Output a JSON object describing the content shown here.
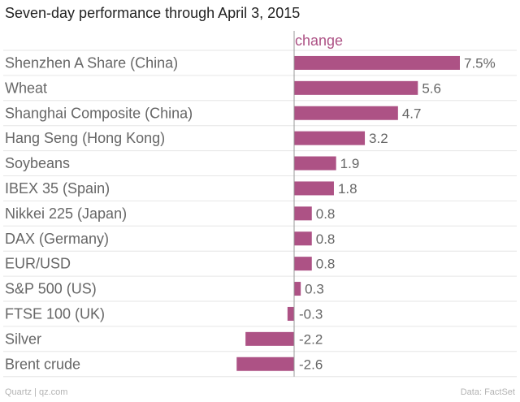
{
  "chart_data": {
    "type": "bar",
    "orientation": "horizontal",
    "title": "Seven-day performance through April 3, 2015",
    "series": [
      {
        "name": "change",
        "values": [
          7.5,
          5.6,
          4.7,
          3.2,
          1.9,
          1.8,
          0.8,
          0.8,
          0.8,
          0.3,
          -0.3,
          -2.2,
          -2.6
        ]
      }
    ],
    "categories": [
      "Shenzhen A Share (China)",
      "Wheat",
      "Shanghai Composite (China)",
      "Hang Seng (Hong Kong)",
      "Soybeans",
      "IBEX 35 (Spain)",
      "Nikkei 225 (Japan)",
      "DAX (Germany)",
      "EUR/USD",
      "S&P 500 (US)",
      "FTSE 100 (UK)",
      "Silver",
      "Brent crude"
    ],
    "value_labels": [
      "7.5%",
      "5.6",
      "4.7",
      "3.2",
      "1.9",
      "1.8",
      "0.8",
      "0.8",
      "0.8",
      "0.3",
      "-0.3",
      "-2.2",
      "-2.6"
    ],
    "xlim": [
      -2.6,
      7.5
    ],
    "xlabel": "",
    "ylabel": "",
    "grid": "horizontal rules"
  },
  "colors": {
    "bar": "#ad5285",
    "series_label": "#ad5285",
    "category_text": "#666666",
    "value_text": "#666666",
    "gridline": "#e6e6e6",
    "axis": "#999999"
  },
  "footer": {
    "source_left": "Quartz | qz.com",
    "source_right": "Data: FactSet"
  }
}
